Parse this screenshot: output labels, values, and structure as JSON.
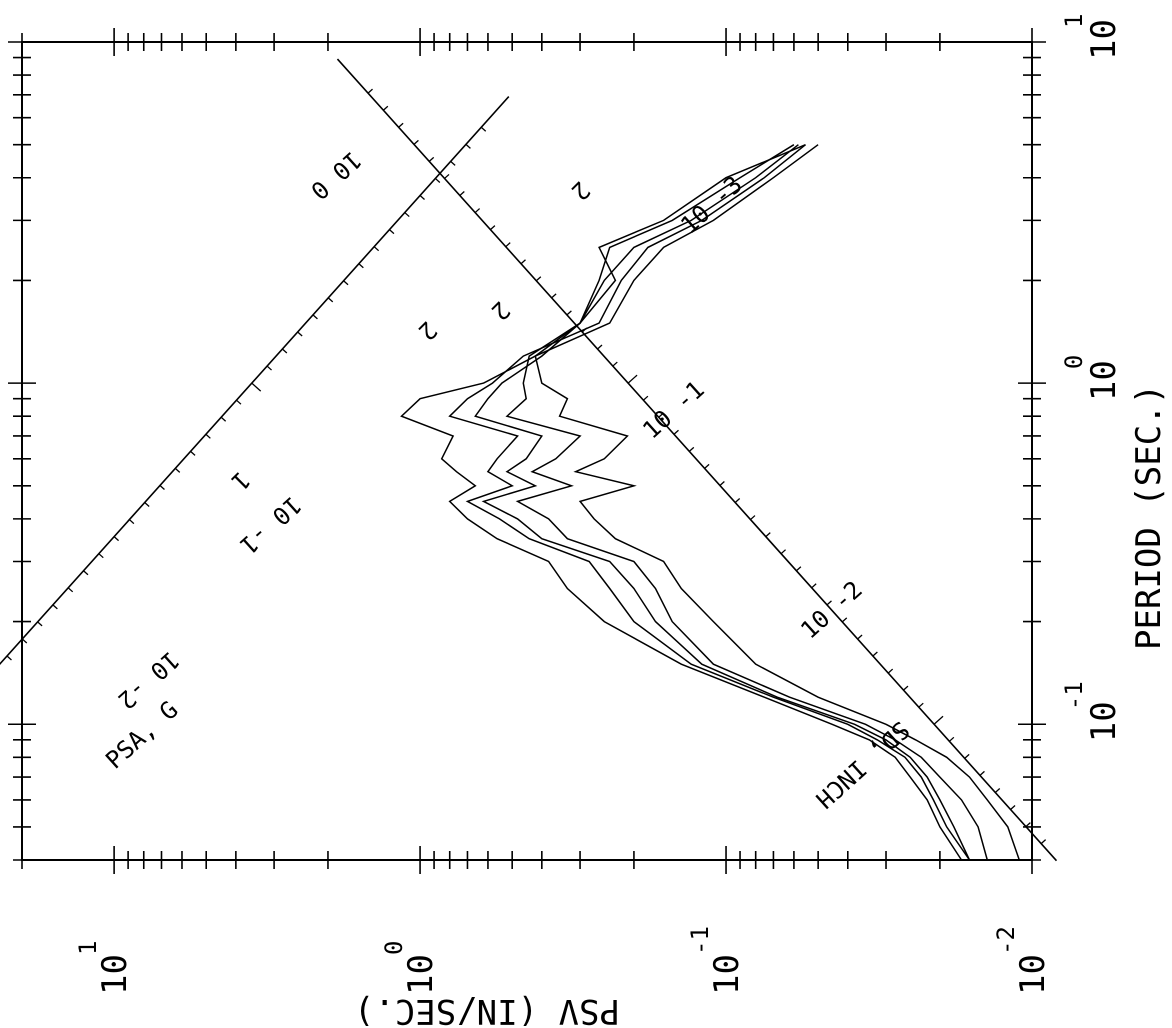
{
  "chart_data": {
    "type": "line",
    "description_axes": "tripartite log-log response spectrum, rendered rotated 90 degrees",
    "title": "",
    "xlabel": "PERIOD (SEC.)",
    "ylabel": "PSV (IN/SEC.)",
    "x_scale": "log",
    "y_scale": "log",
    "xlim": [
      0.04,
      10
    ],
    "ylim": [
      0.01,
      20
    ],
    "x_ticks": [
      {
        "mant": "10",
        "exp": "-1"
      },
      {
        "mant": "10",
        "exp": "0"
      },
      {
        "mant": "10",
        "exp": "1"
      }
    ],
    "y_ticks": [
      {
        "mant": "10",
        "exp": "-2"
      },
      {
        "mant": "10",
        "exp": "-1"
      },
      {
        "mant": "10",
        "exp": "0"
      },
      {
        "mant": "10",
        "exp": "1"
      }
    ],
    "psa_axis": {
      "label": "PSA, G",
      "ticks": [
        "10 0",
        "10 -1",
        "10 -2"
      ]
    },
    "sd_axis": {
      "label": "SD, INCH",
      "ticks": [
        "10 0",
        "10 -1",
        "10 -2",
        "10 -3"
      ]
    },
    "series": [
      {
        "x": [
          0.04,
          0.05,
          0.06,
          0.07,
          0.08,
          0.09,
          0.1,
          0.12,
          0.15,
          0.2,
          0.25,
          0.3,
          0.35,
          0.4,
          0.45,
          0.5,
          0.55,
          0.6,
          0.7,
          0.8,
          0.9,
          1.0,
          1.2,
          1.5,
          2.0,
          2.5,
          3.0,
          4.0,
          5.0
        ],
        "y": [
          0.011,
          0.012,
          0.014,
          0.016,
          0.019,
          0.024,
          0.03,
          0.05,
          0.08,
          0.11,
          0.14,
          0.16,
          0.23,
          0.27,
          0.3,
          0.2,
          0.31,
          0.25,
          0.21,
          0.35,
          0.33,
          0.4,
          0.42,
          0.3,
          0.23,
          0.26,
          0.16,
          0.1,
          0.055
        ]
      },
      {
        "x": [
          0.04,
          0.05,
          0.06,
          0.07,
          0.08,
          0.09,
          0.1,
          0.12,
          0.15,
          0.2,
          0.25,
          0.3,
          0.35,
          0.4,
          0.45,
          0.5,
          0.55,
          0.6,
          0.7,
          0.8,
          0.9,
          1.0,
          1.2,
          1.5,
          2.0,
          2.5,
          3.0,
          4.0,
          5.0
        ],
        "y": [
          0.014,
          0.015,
          0.017,
          0.02,
          0.023,
          0.028,
          0.035,
          0.062,
          0.11,
          0.15,
          0.17,
          0.2,
          0.33,
          0.38,
          0.48,
          0.32,
          0.43,
          0.36,
          0.3,
          0.52,
          0.45,
          0.46,
          0.44,
          0.3,
          0.26,
          0.24,
          0.15,
          0.09,
          0.06
        ]
      },
      {
        "x": [
          0.04,
          0.05,
          0.06,
          0.07,
          0.08,
          0.09,
          0.1,
          0.12,
          0.15,
          0.2,
          0.25,
          0.3,
          0.35,
          0.4,
          0.45,
          0.5,
          0.55,
          0.6,
          0.7,
          0.8,
          0.9,
          1.0,
          1.2,
          1.5,
          2.0,
          2.5,
          3.0,
          4.0,
          5.0
        ],
        "y": [
          0.016,
          0.018,
          0.02,
          0.022,
          0.025,
          0.03,
          0.038,
          0.068,
          0.12,
          0.17,
          0.2,
          0.24,
          0.4,
          0.48,
          0.62,
          0.42,
          0.52,
          0.45,
          0.4,
          0.66,
          0.6,
          0.54,
          0.4,
          0.3,
          0.25,
          0.2,
          0.13,
          0.08,
          0.058
        ]
      },
      {
        "x": [
          0.04,
          0.05,
          0.06,
          0.07,
          0.08,
          0.09,
          0.1,
          0.12,
          0.15,
          0.2,
          0.25,
          0.3,
          0.35,
          0.4,
          0.45,
          0.5,
          0.55,
          0.6,
          0.7,
          0.8,
          0.9,
          1.0,
          1.2,
          1.5,
          2.0,
          2.5,
          3.0,
          4.0,
          5.0
        ],
        "y": [
          0.016,
          0.019,
          0.021,
          0.023,
          0.026,
          0.032,
          0.04,
          0.07,
          0.13,
          0.2,
          0.24,
          0.28,
          0.44,
          0.55,
          0.7,
          0.5,
          0.6,
          0.56,
          0.48,
          0.8,
          0.7,
          0.58,
          0.46,
          0.26,
          0.22,
          0.18,
          0.12,
          0.075,
          0.055
        ]
      },
      {
        "x": [
          0.04,
          0.05,
          0.06,
          0.07,
          0.08,
          0.09,
          0.1,
          0.12,
          0.15,
          0.2,
          0.25,
          0.3,
          0.35,
          0.4,
          0.45,
          0.5,
          0.55,
          0.6,
          0.7,
          0.8,
          0.9,
          1.0,
          1.2,
          1.5,
          2.0,
          2.5,
          3.0,
          4.0,
          5.0
        ],
        "y": [
          0.017,
          0.02,
          0.022,
          0.025,
          0.028,
          0.034,
          0.045,
          0.075,
          0.14,
          0.25,
          0.33,
          0.38,
          0.56,
          0.7,
          0.8,
          0.66,
          0.76,
          0.85,
          0.78,
          1.15,
          1.0,
          0.62,
          0.42,
          0.24,
          0.2,
          0.16,
          0.11,
          0.07,
          0.05
        ]
      }
    ],
    "annotations": [
      "2",
      "2",
      "2",
      "1"
    ],
    "grid": false,
    "legend": "none"
  }
}
